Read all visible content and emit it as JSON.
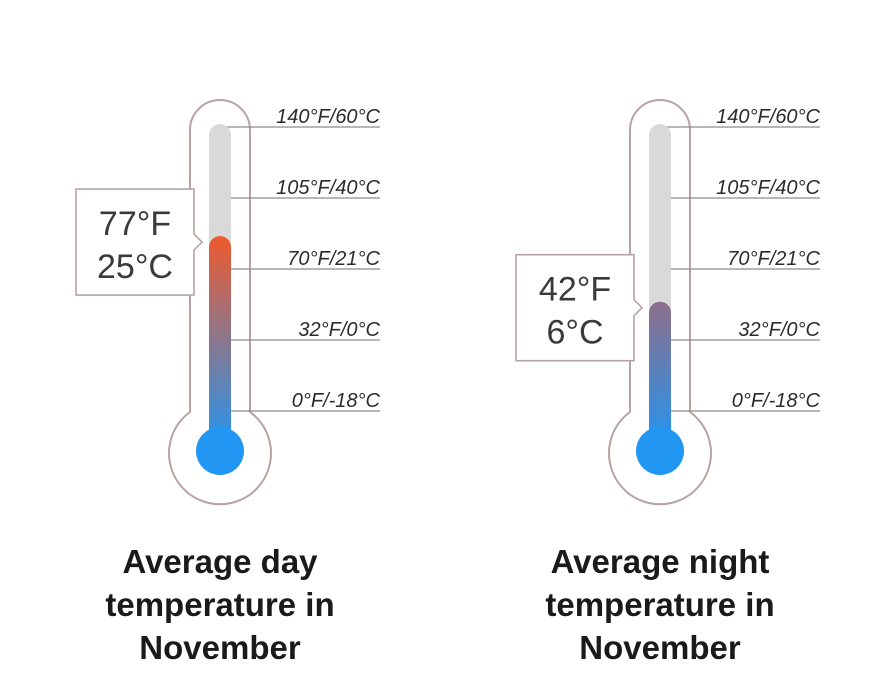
{
  "chart_data": [
    {
      "type": "thermometer",
      "title": "Average day temperature in November",
      "ticks": [
        {
          "label": "140°F/60°C",
          "celsius": 60
        },
        {
          "label": "105°F/40°C",
          "celsius": 40
        },
        {
          "label": "70°F/21°C",
          "celsius": 21
        },
        {
          "label": "32°F/0°C",
          "celsius": 0
        },
        {
          "label": "0°F/-18°C",
          "celsius": -18
        }
      ],
      "value": {
        "fahrenheit": 77,
        "celsius": 25
      },
      "value_label_f": "77°F",
      "value_label_c": "25°C",
      "callout_side": "left",
      "top_color": "#ee5a2e",
      "bottom_color": "#2196f3"
    },
    {
      "type": "thermometer",
      "title": "Average night temperature in November",
      "ticks": [
        {
          "label": "140°F/60°C",
          "celsius": 60
        },
        {
          "label": "105°F/40°C",
          "celsius": 40
        },
        {
          "label": "70°F/21°C",
          "celsius": 21
        },
        {
          "label": "32°F/0°C",
          "celsius": 0
        },
        {
          "label": "0°F/-18°C",
          "celsius": -18
        }
      ],
      "value": {
        "fahrenheit": 42,
        "celsius": 6
      },
      "value_label_f": "42°F",
      "value_label_c": "6°C",
      "callout_side": "left",
      "top_color": "#8d6e8a",
      "bottom_color": "#2196f3"
    }
  ],
  "colors": {
    "outline": "#b7a3a3",
    "track": "#d9d9d9",
    "tick_line": "#8c8c8c",
    "bulb": "#2196f3"
  }
}
